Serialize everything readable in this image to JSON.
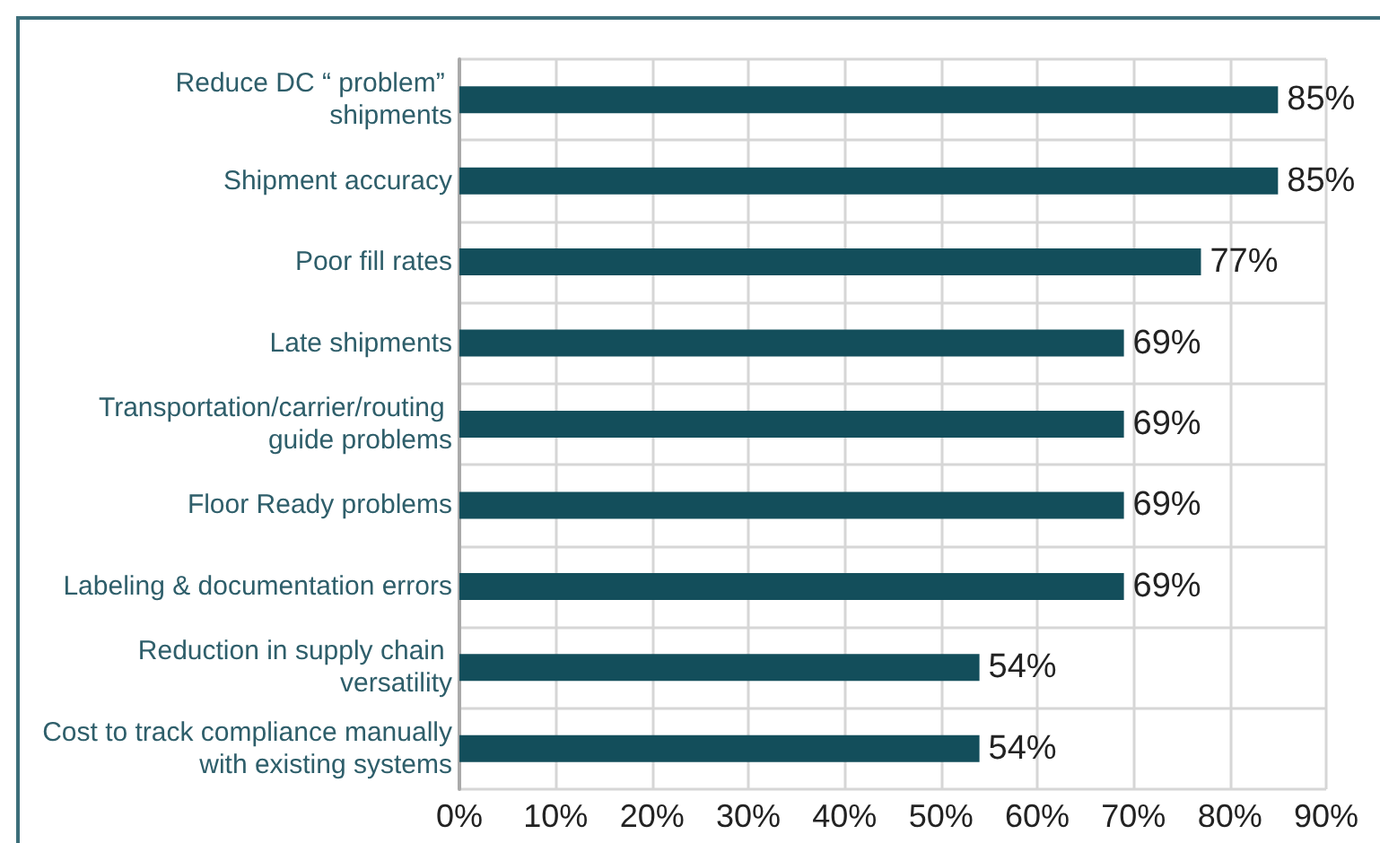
{
  "chart_data": {
    "type": "bar",
    "orientation": "horizontal",
    "categories": [
      "Reduce DC “ problem” shipments",
      "Shipment accuracy",
      "Poor fill rates",
      "Late shipments",
      "Transportation/carrier/routing guide problems",
      "Floor Ready problems",
      "Labeling & documentation errors",
      "Reduction in supply chain versatility",
      "Cost to track compliance manually with existing systems"
    ],
    "values": [
      85,
      85,
      77,
      69,
      69,
      69,
      69,
      54,
      54
    ],
    "value_labels": [
      "85%",
      "85%",
      "77%",
      "69%",
      "69%",
      "69%",
      "69%",
      "54%",
      "54%"
    ],
    "color": "#134e5b",
    "xlim": [
      0,
      90
    ],
    "xticks": [
      {
        "value": 0,
        "label": "0%"
      },
      {
        "value": 10,
        "label": "10%"
      },
      {
        "value": 20,
        "label": "20%"
      },
      {
        "value": 30,
        "label": "30%"
      },
      {
        "value": 40,
        "label": "40%"
      },
      {
        "value": 50,
        "label": "50%"
      },
      {
        "value": 60,
        "label": "60%"
      },
      {
        "value": 70,
        "label": "70%"
      },
      {
        "value": 80,
        "label": "80%"
      },
      {
        "value": 90,
        "label": "90%"
      }
    ],
    "grid": true
  }
}
